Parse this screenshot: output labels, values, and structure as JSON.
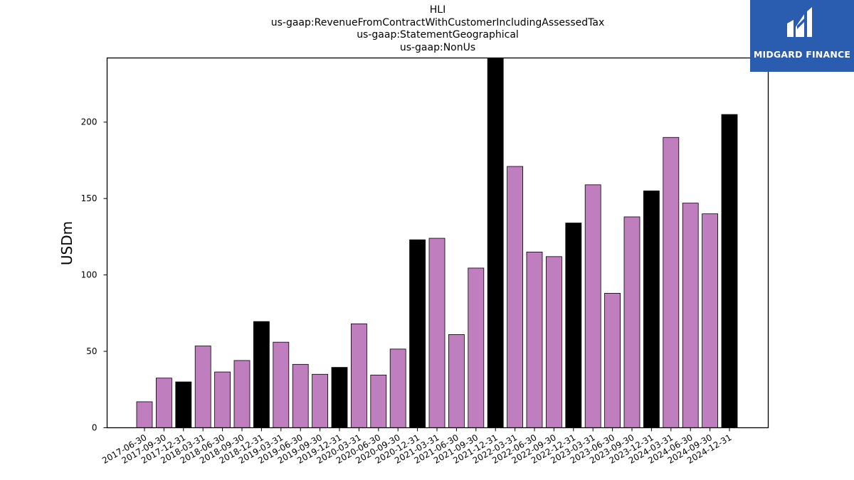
{
  "colors": {
    "quarter_bar": "#bf7fbf",
    "year_end_bar": "#000000",
    "logo_bg": "#2a5db0"
  },
  "logo": {
    "icon": "midgard-m-logo-icon",
    "text": "MIDGARD FINANCE"
  },
  "chart_data": {
    "type": "bar",
    "title_lines": [
      "HLI",
      "us-gaap:RevenueFromContractWithCustomerIncludingAssessedTax",
      "us-gaap:StatementGeographical",
      "us-gaap:NonUs"
    ],
    "xlabel": "",
    "ylabel": "USDm",
    "ylim": [
      0,
      242
    ],
    "yticks": [
      0,
      50,
      100,
      150,
      200
    ],
    "grid": false,
    "categories": [
      "2017-06-30",
      "2017-09-30",
      "2017-12-31",
      "2018-03-31",
      "2018-06-30",
      "2018-09-30",
      "2018-12-31",
      "2019-03-31",
      "2019-06-30",
      "2019-09-30",
      "2019-12-31",
      "2020-03-31",
      "2020-06-30",
      "2020-09-30",
      "2020-12-31",
      "2021-03-31",
      "2021-06-30",
      "2021-09-30",
      "2021-12-31",
      "2022-03-31",
      "2022-06-30",
      "2022-09-30",
      "2022-12-31",
      "2023-03-31",
      "2023-06-30",
      "2023-09-30",
      "2023-12-31",
      "2024-03-31",
      "2024-06-30",
      "2024-09-30",
      "2024-12-31"
    ],
    "values": [
      17,
      32.5,
      30,
      53.5,
      36.5,
      44,
      69.5,
      56,
      41.5,
      35,
      39.5,
      68,
      34.5,
      51.5,
      123,
      124,
      61,
      104.5,
      245,
      171,
      115,
      112,
      134,
      159,
      88,
      138,
      155,
      190,
      147,
      140,
      205
    ],
    "year_end": [
      false,
      false,
      true,
      false,
      false,
      false,
      true,
      false,
      false,
      false,
      true,
      false,
      false,
      false,
      true,
      false,
      false,
      false,
      true,
      false,
      false,
      false,
      true,
      false,
      false,
      false,
      true,
      false,
      false,
      false,
      true
    ]
  }
}
